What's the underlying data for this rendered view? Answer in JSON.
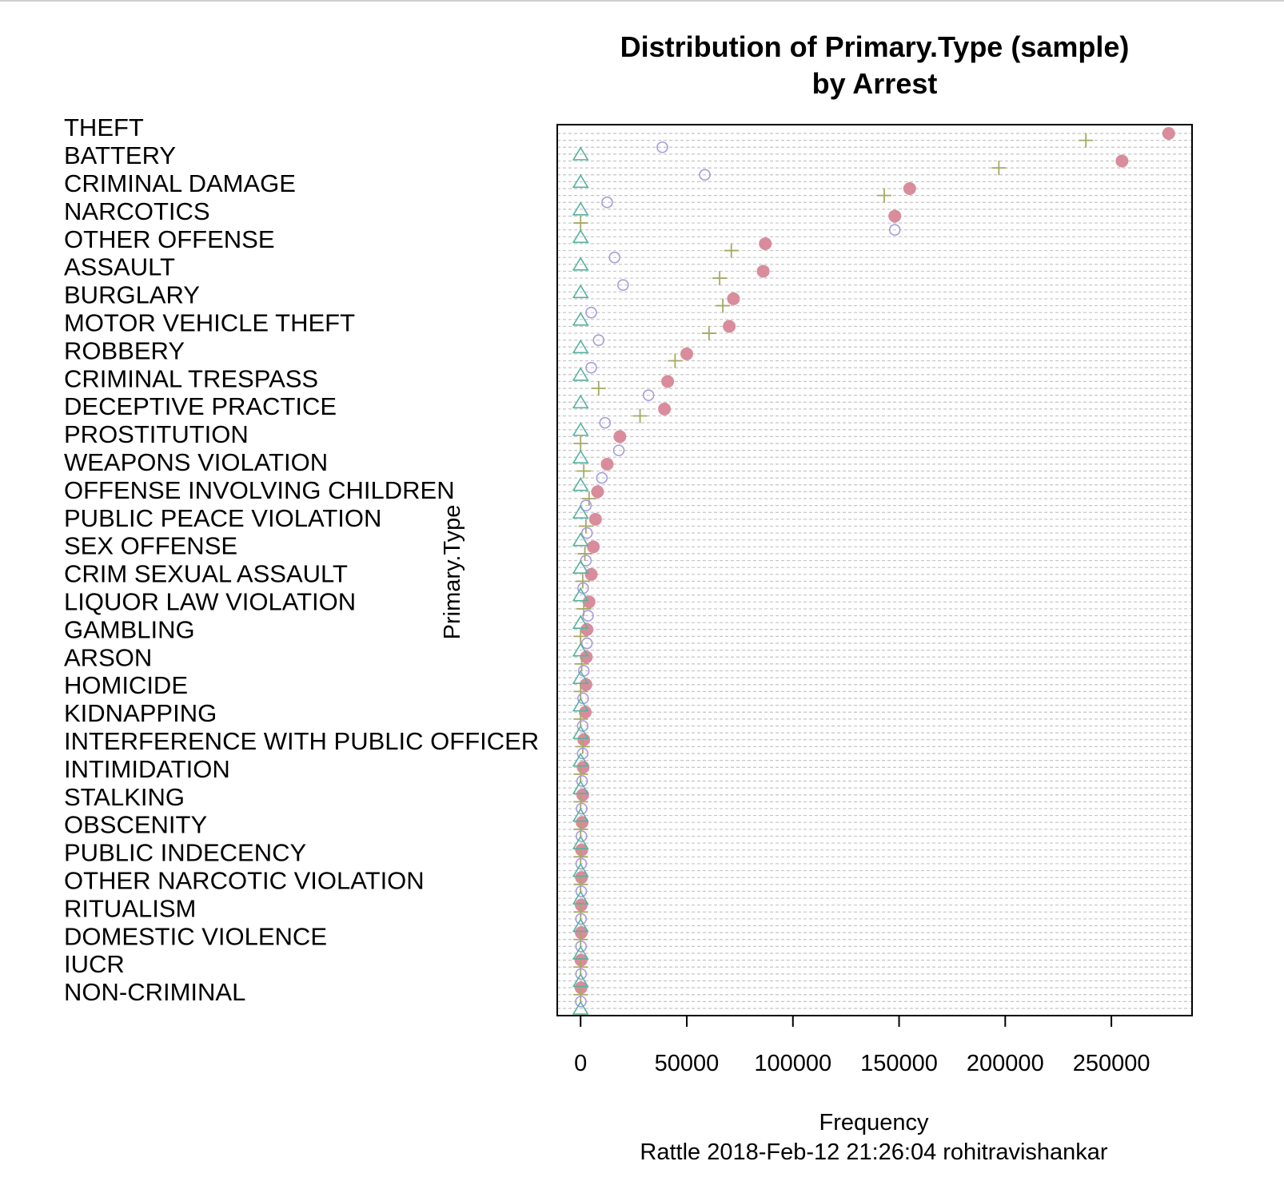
{
  "chart_data": {
    "type": "scatter",
    "title_lines": [
      "Distribution of Primary.Type (sample)",
      "by Arrest"
    ],
    "xlabel": "Frequency",
    "ylabel": "Primary.Type",
    "caption": "Rattle 2018-Feb-12 21:26:04 rohitravishankar",
    "xticks": [
      0,
      50000,
      100000,
      150000,
      200000,
      250000
    ],
    "xlim": [
      -11000,
      288000
    ],
    "grid": true,
    "legend": "none",
    "categories": [
      "THEFT",
      "BATTERY",
      "CRIMINAL DAMAGE",
      "NARCOTICS",
      "OTHER OFFENSE",
      "ASSAULT",
      "BURGLARY",
      "MOTOR VEHICLE THEFT",
      "ROBBERY",
      "CRIMINAL TRESPASS",
      "DECEPTIVE PRACTICE",
      "PROSTITUTION",
      "WEAPONS VIOLATION",
      "OFFENSE INVOLVING CHILDREN",
      "PUBLIC PEACE VIOLATION",
      "SEX OFFENSE",
      "CRIM SEXUAL ASSAULT",
      "LIQUOR LAW VIOLATION",
      "GAMBLING",
      "ARSON",
      "HOMICIDE",
      "KIDNAPPING",
      "INTERFERENCE WITH PUBLIC OFFICER",
      "INTIMIDATION",
      "STALKING",
      "OBSCENITY",
      "PUBLIC INDECENCY",
      "OTHER NARCOTIC VIOLATION",
      "RITUALISM",
      "DOMESTIC VIOLENCE",
      "IUCR",
      "NON-CRIMINAL"
    ],
    "series": [
      {
        "marker": "filled-circle",
        "color": "#d98c9c",
        "values": [
          277000,
          255000,
          155000,
          148000,
          87000,
          86000,
          72000,
          70000,
          50000,
          41000,
          39500,
          18500,
          12500,
          8000,
          7000,
          6000,
          5000,
          4000,
          3000,
          2700,
          2500,
          2200,
          1500,
          1200,
          1000,
          700,
          500,
          400,
          300,
          300,
          200,
          200
        ]
      },
      {
        "marker": "plus",
        "color": "#a5a964",
        "values": [
          238000,
          197000,
          143000,
          0,
          71000,
          65500,
          67000,
          60500,
          44500,
          8500,
          28000,
          0,
          1500,
          4000,
          2500,
          2000,
          1000,
          1500,
          0,
          500,
          0,
          0,
          1000,
          0,
          0,
          0,
          0,
          0,
          0,
          0,
          0,
          0
        ]
      },
      {
        "marker": "open-circle",
        "color": "#a79bdd",
        "values": [
          38500,
          58500,
          12500,
          148000,
          16000,
          20000,
          5000,
          8500,
          5000,
          32000,
          11500,
          18000,
          10000,
          2500,
          3000,
          2500,
          1200,
          3500,
          3000,
          1500,
          1200,
          1000,
          1000,
          700,
          500,
          400,
          300,
          300,
          200,
          200,
          200,
          100
        ]
      },
      {
        "marker": "open-triangle",
        "color": "#56b29e",
        "values": [
          0,
          0,
          0,
          0,
          0,
          0,
          0,
          0,
          0,
          0,
          0,
          0,
          0,
          0,
          0,
          0,
          0,
          0,
          0,
          0,
          0,
          0,
          0,
          0,
          0,
          0,
          0,
          0,
          0,
          0,
          0,
          0
        ]
      }
    ]
  }
}
